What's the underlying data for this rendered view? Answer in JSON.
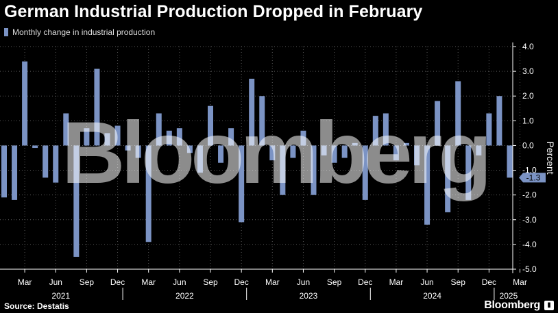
{
  "title": "German Industrial Production Dropped in February",
  "legend": {
    "label": "Monthly change in industrial production"
  },
  "source": "Source: Destatis",
  "brand": "Bloomberg",
  "watermark": "Bloomberg",
  "colors": {
    "bar": "#7b93c4",
    "background": "#000000",
    "grid": "#5a5a5a",
    "text": "#ffffff"
  },
  "chart_data": {
    "type": "bar",
    "title": "German Industrial Production Dropped in February",
    "ylabel": "Percent",
    "ylim": [
      -5.0,
      4.0
    ],
    "yticks": [
      "4.0",
      "3.0",
      "2.0",
      "1.0",
      "0.0",
      "-1.0",
      "-2.0",
      "-3.0",
      "-4.0",
      "-5.0"
    ],
    "ytick_values": [
      4,
      3,
      2,
      1,
      0,
      -1,
      -2,
      -3,
      -4,
      -5
    ],
    "x_month_labels": [
      "Mar",
      "Jun",
      "Sep",
      "Dec",
      "Mar",
      "Jun",
      "Sep",
      "Dec",
      "Mar",
      "Jun",
      "Sep",
      "Dec",
      "Mar",
      "Jun",
      "Sep",
      "Dec",
      "Mar"
    ],
    "x_year_labels": [
      "2021",
      "2022",
      "2023",
      "2024",
      "2025"
    ],
    "last_value_label": "-1.3",
    "series": [
      {
        "name": "Monthly change in industrial production",
        "categories": [
          "Jan 2021",
          "Feb 2021",
          "Mar 2021",
          "Apr 2021",
          "May 2021",
          "Jun 2021",
          "Jul 2021",
          "Aug 2021",
          "Sep 2021",
          "Oct 2021",
          "Nov 2021",
          "Dec 2021",
          "Jan 2022",
          "Feb 2022",
          "Mar 2022",
          "Apr 2022",
          "May 2022",
          "Jun 2022",
          "Jul 2022",
          "Aug 2022",
          "Sep 2022",
          "Oct 2022",
          "Nov 2022",
          "Dec 2022",
          "Jan 2023",
          "Feb 2023",
          "Mar 2023",
          "Apr 2023",
          "May 2023",
          "Jun 2023",
          "Jul 2023",
          "Aug 2023",
          "Sep 2023",
          "Oct 2023",
          "Nov 2023",
          "Dec 2023",
          "Jan 2024",
          "Feb 2024",
          "Mar 2024",
          "Apr 2024",
          "May 2024",
          "Jun 2024",
          "Jul 2024",
          "Aug 2024",
          "Sep 2024",
          "Oct 2024",
          "Nov 2024",
          "Dec 2024",
          "Jan 2025",
          "Feb 2025"
        ],
        "values": [
          -2.1,
          -2.2,
          3.4,
          -0.1,
          -1.3,
          -1.5,
          1.3,
          -4.5,
          0.7,
          3.1,
          0.5,
          0.8,
          -0.2,
          -0.5,
          -3.9,
          1.3,
          0.6,
          0.7,
          -0.3,
          -1.1,
          1.6,
          -0.7,
          0.7,
          -3.1,
          2.7,
          2.0,
          -0.6,
          -2.0,
          -0.5,
          0.6,
          -2.0,
          -0.4,
          -0.7,
          -0.5,
          0.1,
          -2.2,
          1.2,
          1.3,
          -0.6,
          0.1,
          -0.8,
          -3.2,
          1.8,
          -2.7,
          2.6,
          -2.2,
          -0.4,
          1.3,
          2.0,
          -1.3
        ]
      }
    ]
  }
}
